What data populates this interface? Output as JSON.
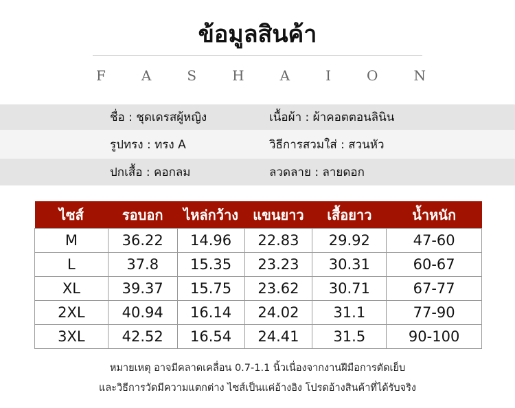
{
  "title": "ข้อมูลสินค้า",
  "brand_letters": [
    "F",
    "A",
    "S",
    "H",
    "A",
    "I",
    "O",
    "N"
  ],
  "info": [
    {
      "left": "ชื่อ : ชุดเดรสผู้หญิง",
      "right": "เนื้อผ้า : ผ้าคอตตอนลินิน"
    },
    {
      "left": "รูปทรง : ทรง A",
      "right": "วิธีการสวมใส่ : สวนหัว"
    },
    {
      "left": "ปกเสื้อ : คอกลม",
      "right": "ลวดลาย : ลายดอก"
    }
  ],
  "table": {
    "headers": [
      "ไซส์",
      "รอบอก",
      "ไหล่กว้าง",
      "แขนยาว",
      "เสื้อยาว",
      "น้ำหนัก"
    ],
    "rows": [
      [
        "M",
        "36.22",
        "14.96",
        "22.83",
        "29.92",
        "47-60"
      ],
      [
        "L",
        "37.8",
        "15.35",
        "23.23",
        "30.31",
        "60-67"
      ],
      [
        "XL",
        "39.37",
        "15.75",
        "23.62",
        "30.71",
        "67-77"
      ],
      [
        "2XL",
        "40.94",
        "16.14",
        "24.02",
        "31.1",
        "77-90"
      ],
      [
        "3XL",
        "42.52",
        "16.54",
        "24.41",
        "31.5",
        "90-100"
      ]
    ],
    "header_color": "#a11200"
  },
  "note": [
    "หมายเหตุ อาจมีคลาดเคลื่อน 0.7-1.1 นิ้วเนื่องจากงานฝีมือการตัดเย็บ",
    "และวิธีการวัดมีความแตกต่าง ไซส์เป็นแค่อ้างอิง โปรดอ้างสินค้าที่ได้รับจริง"
  ]
}
